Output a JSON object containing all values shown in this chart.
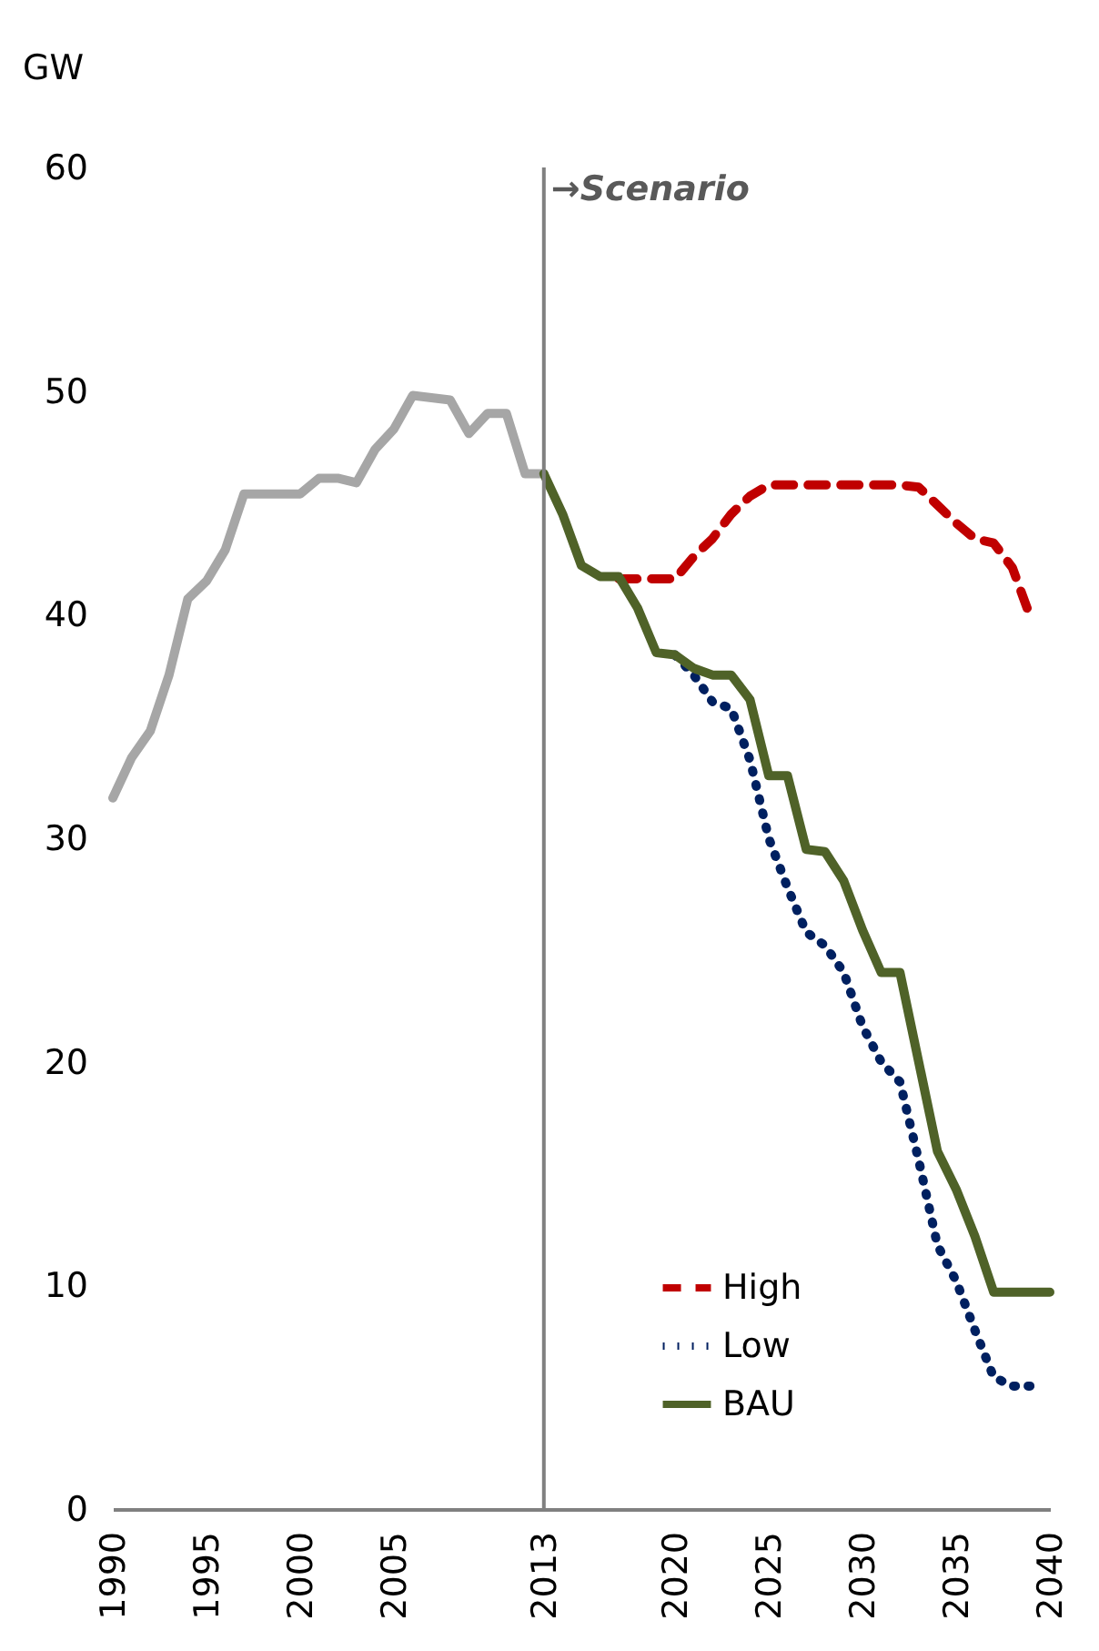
{
  "chart_data": {
    "type": "line",
    "ylabel": "GW",
    "xlim": [
      1990,
      2040
    ],
    "xticks": [
      1990,
      1995,
      2000,
      2005,
      2013,
      2020,
      2025,
      2030,
      2035,
      2040
    ],
    "ylim": [
      0,
      60
    ],
    "yticks": [
      0,
      10,
      20,
      30,
      40,
      50,
      60
    ],
    "grid": false,
    "legend": "bottom right",
    "marker": "none",
    "ref_lines": [
      {
        "axis": "x",
        "value": 2013,
        "label": "→Scenario",
        "color": "#808080"
      }
    ],
    "series": [
      {
        "color": "#a6a6a6",
        "line_style": "solid",
        "x": [
          1990,
          1991,
          1992,
          1993,
          1994,
          1995,
          1996,
          1997,
          1998,
          1999,
          2000,
          2001,
          2002,
          2003,
          2004,
          2005,
          2006,
          2007,
          2008,
          2009,
          2010,
          2011,
          2012,
          2013
        ],
        "values": [
          31.8,
          33.6,
          34.8,
          37.3,
          40.7,
          41.5,
          42.9,
          45.4,
          45.4,
          45.4,
          45.4,
          46.1,
          46.1,
          45.9,
          47.4,
          48.3,
          49.8,
          49.7,
          49.6,
          48.1,
          49.0,
          49.0,
          46.3,
          46.3
        ]
      },
      {
        "name": "High",
        "color": "#c00000",
        "line_style": "dashed",
        "x": [
          2017,
          2018,
          2019,
          2020,
          2021,
          2022,
          2023,
          2024,
          2025,
          2026,
          2027,
          2028,
          2029,
          2030,
          2031,
          2032,
          2033,
          2034,
          2035,
          2036,
          2037,
          2038,
          2039
        ],
        "values": [
          41.6,
          41.6,
          41.6,
          41.6,
          42.6,
          43.4,
          44.5,
          45.3,
          45.8,
          45.8,
          45.8,
          45.8,
          45.8,
          45.8,
          45.8,
          45.8,
          45.7,
          44.9,
          44.1,
          43.4,
          43.2,
          42.1,
          39.8
        ]
      },
      {
        "name": "Low",
        "color": "#002060",
        "line_style": "dotted",
        "x": [
          2020,
          2021,
          2022,
          2023,
          2024,
          2025,
          2026,
          2027,
          2028,
          2029,
          2030,
          2031,
          2032,
          2033,
          2034,
          2035,
          2036,
          2037,
          2038,
          2039
        ],
        "values": [
          38.2,
          37.3,
          36.1,
          35.8,
          33.5,
          30.0,
          27.8,
          25.8,
          25.2,
          24.0,
          21.6,
          20.0,
          19.1,
          15.6,
          11.8,
          10.2,
          8.0,
          5.9,
          5.5,
          5.5
        ]
      },
      {
        "name": "BAU",
        "color": "#4f6228",
        "line_style": "solid",
        "x": [
          2013,
          2014,
          2015,
          2016,
          2017,
          2018,
          2019,
          2020,
          2021,
          2022,
          2023,
          2024,
          2025,
          2026,
          2027,
          2028,
          2029,
          2030,
          2031,
          2032,
          2033,
          2034,
          2035,
          2036,
          2037,
          2038,
          2039,
          2040
        ],
        "values": [
          46.3,
          44.5,
          42.2,
          41.7,
          41.7,
          40.3,
          38.3,
          38.2,
          37.6,
          37.3,
          37.3,
          36.2,
          32.8,
          32.8,
          29.5,
          29.4,
          28.1,
          25.9,
          24.0,
          24.0,
          20.0,
          16.0,
          14.3,
          12.2,
          9.7,
          9.7,
          9.7,
          9.7
        ]
      }
    ]
  }
}
